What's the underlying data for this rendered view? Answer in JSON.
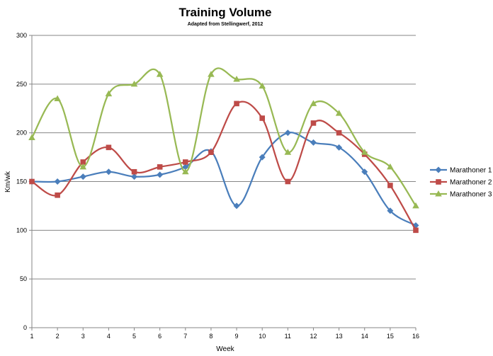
{
  "chart_data": {
    "type": "line",
    "title": "Training Volume",
    "subtitle": "Adapted  from Stellingwerf, 2012",
    "xlabel": "Week",
    "ylabel": "Km/wk",
    "x": [
      1,
      2,
      3,
      4,
      5,
      6,
      7,
      8,
      9,
      10,
      11,
      12,
      13,
      14,
      15,
      16
    ],
    "ylim": [
      0,
      300
    ],
    "yticks": [
      0,
      50,
      100,
      150,
      200,
      250,
      300
    ],
    "grid": true,
    "smooth": true,
    "legend_position": "right",
    "series": [
      {
        "name": "Marathoner 1",
        "color": "#4a7ebb",
        "marker": "diamond",
        "values": [
          150,
          150,
          155,
          160,
          155,
          157,
          165,
          181,
          125,
          175,
          200,
          190,
          185,
          160,
          120,
          105
        ]
      },
      {
        "name": "Marathoner 2",
        "color": "#be4b48",
        "marker": "square",
        "values": [
          150,
          136,
          170,
          185,
          160,
          165,
          170,
          180,
          230,
          215,
          150,
          210,
          200,
          178,
          146,
          100
        ]
      },
      {
        "name": "Marathoner 3",
        "color": "#98b954",
        "marker": "triangle",
        "values": [
          195,
          235,
          165,
          240,
          250,
          260,
          160,
          260,
          255,
          248,
          180,
          230,
          220,
          180,
          165,
          125
        ]
      }
    ]
  }
}
